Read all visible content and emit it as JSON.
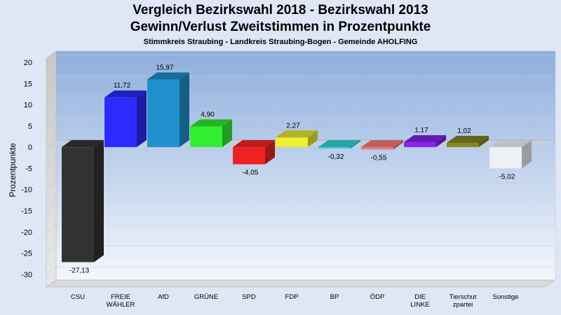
{
  "chart_data": {
    "type": "bar",
    "title": "Vergleich Bezirkswahl 2018 - Bezirkswahl 2013",
    "subtitle": "Gewinn/Verlust Zweitstimmen in Prozentpunkte",
    "subsubtitle": "Stimmkreis Straubing - Landkreis Straubing-Bogen - Gemeinde AHOLFING",
    "ylabel": "Prozentpunkte",
    "xlabel": "",
    "ylim": [
      -33,
      21
    ],
    "yticks": [
      20,
      15,
      10,
      5,
      0,
      -5,
      -10,
      -15,
      -20,
      -25,
      -30
    ],
    "grid": true,
    "categories": [
      "CSU",
      "FREIE WÄHLER",
      "AfD",
      "GRÜNE",
      "SPD",
      "FDP",
      "BP",
      "ÖDP",
      "DIE LINKE",
      "Tierschutzpartei",
      "Sonstige"
    ],
    "category_lines": [
      [
        "CSU"
      ],
      [
        "FREIE",
        "WÄHLER"
      ],
      [
        "AfD"
      ],
      [
        "GRÜNE"
      ],
      [
        "SPD"
      ],
      [
        "FDP"
      ],
      [
        "BP"
      ],
      [
        "ÖDP"
      ],
      [
        "DIE",
        "LINKE"
      ],
      [
        "Tierschut",
        "zpartei"
      ],
      [
        "Sonstige"
      ]
    ],
    "values": [
      -27.13,
      11.72,
      15.97,
      4.9,
      -4.05,
      2.27,
      -0.32,
      -0.55,
      1.17,
      1.02,
      -5.02
    ],
    "value_labels": [
      "-27,13",
      "11,72",
      "15,97",
      "4,90",
      "-4,05",
      "2,27",
      "-0,32",
      "-0,55",
      "1,17",
      "1,02",
      "-5,02"
    ],
    "colors": [
      "#333333",
      "#2b2bff",
      "#2090cc",
      "#33ee33",
      "#ee2222",
      "#eeee33",
      "#33cccc",
      "#ee7777",
      "#8822ee",
      "#888822",
      "#eef0f7"
    ]
  }
}
